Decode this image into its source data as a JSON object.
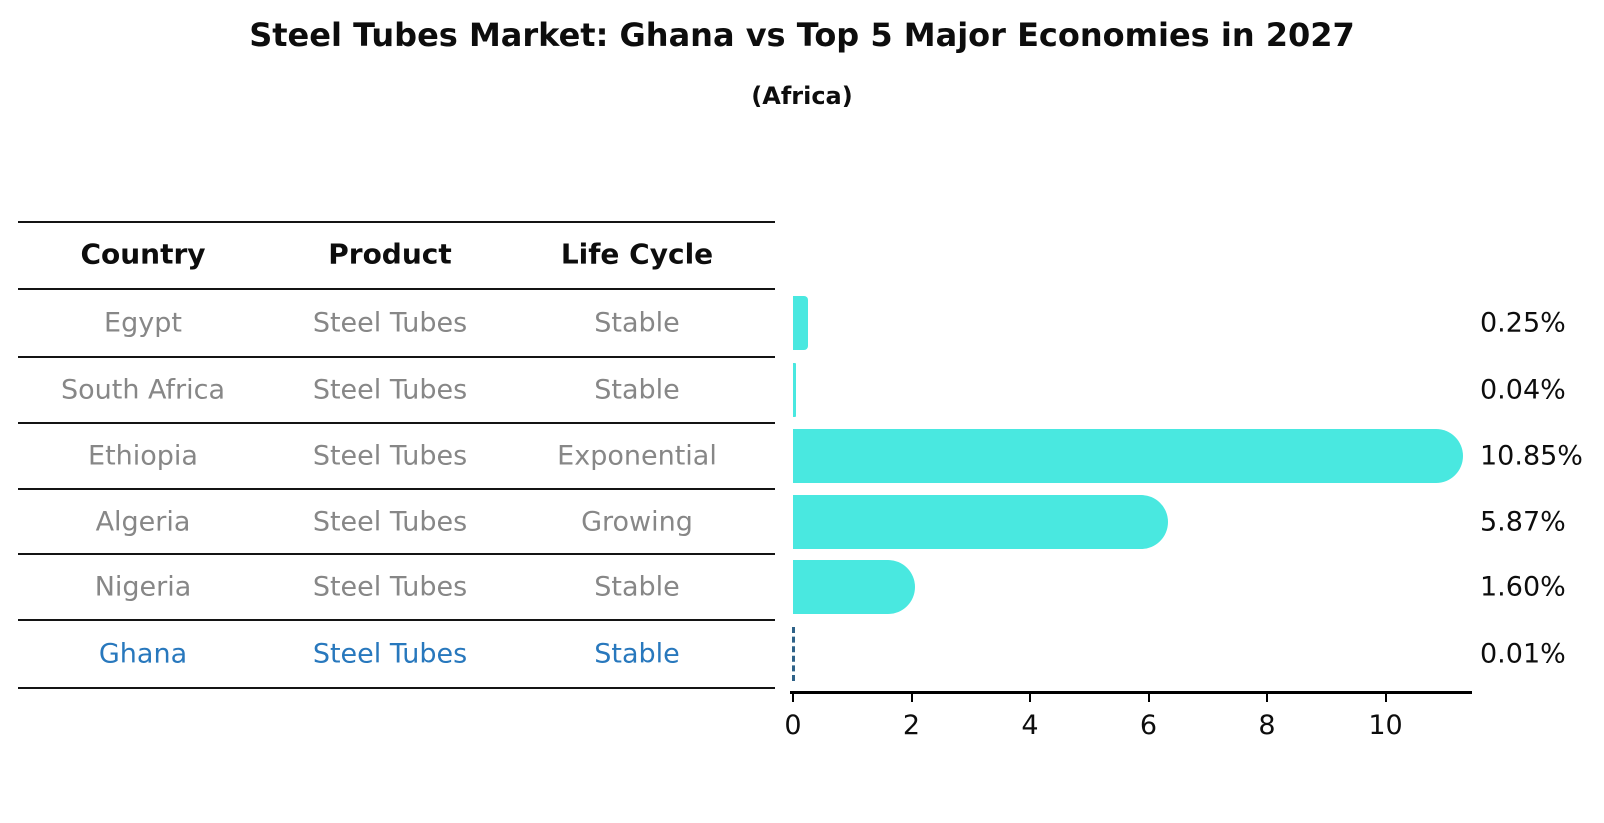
{
  "title": "Steel Tubes Market: Ghana vs Top 5 Major Economies in 2027",
  "subtitle": "(Africa)",
  "table": {
    "headers": [
      "Country",
      "Product",
      "Life Cycle"
    ],
    "rows": [
      {
        "country": "Egypt",
        "product": "Steel Tubes",
        "life_cycle": "Stable",
        "value": 0.25,
        "value_label": "0.25%",
        "highlight": false
      },
      {
        "country": "South Africa",
        "product": "Steel Tubes",
        "life_cycle": "Stable",
        "value": 0.04,
        "value_label": "0.04%",
        "highlight": false
      },
      {
        "country": "Ethiopia",
        "product": "Steel Tubes",
        "life_cycle": "Exponential",
        "value": 10.85,
        "value_label": "10.85%",
        "highlight": false
      },
      {
        "country": "Algeria",
        "product": "Steel Tubes",
        "life_cycle": "Growing",
        "value": 5.87,
        "value_label": "5.87%",
        "highlight": false
      },
      {
        "country": "Nigeria",
        "product": "Steel Tubes",
        "life_cycle": "Stable",
        "value": 1.6,
        "value_label": "1.60%",
        "highlight": false
      },
      {
        "country": "Ghana",
        "product": "Steel Tubes",
        "life_cycle": "Stable",
        "value": 0.01,
        "value_label": "0.01%",
        "highlight": true
      }
    ]
  },
  "chart_data": {
    "type": "bar",
    "orientation": "horizontal",
    "title": "Steel Tubes Market: Ghana vs Top 5 Major Economies in 2027",
    "subtitle": "(Africa)",
    "categories": [
      "Egypt",
      "South Africa",
      "Ethiopia",
      "Algeria",
      "Nigeria",
      "Ghana"
    ],
    "values": [
      0.25,
      0.04,
      10.85,
      5.87,
      1.6,
      0.01
    ],
    "value_labels": [
      "0.25%",
      "0.04%",
      "10.85%",
      "5.87%",
      "1.60%",
      "0.01%"
    ],
    "xlabel": "",
    "ylabel": "",
    "x_ticks": [
      0,
      2,
      4,
      6,
      8,
      10
    ],
    "xlim": [
      0,
      11.5
    ],
    "grid": false,
    "legend": false,
    "highlight_category": "Ghana",
    "highlight_marker": "dashed vertical line at bar end"
  },
  "colors": {
    "background": "#FFFFFF",
    "bar": "#49E8E0",
    "highlight_text": "#2878BD",
    "highlight_dash": "#2F6288",
    "row_text": "#878787",
    "header_text": "#0D0D0D",
    "value_text": "#0D0D0D",
    "axis": "#000000"
  }
}
